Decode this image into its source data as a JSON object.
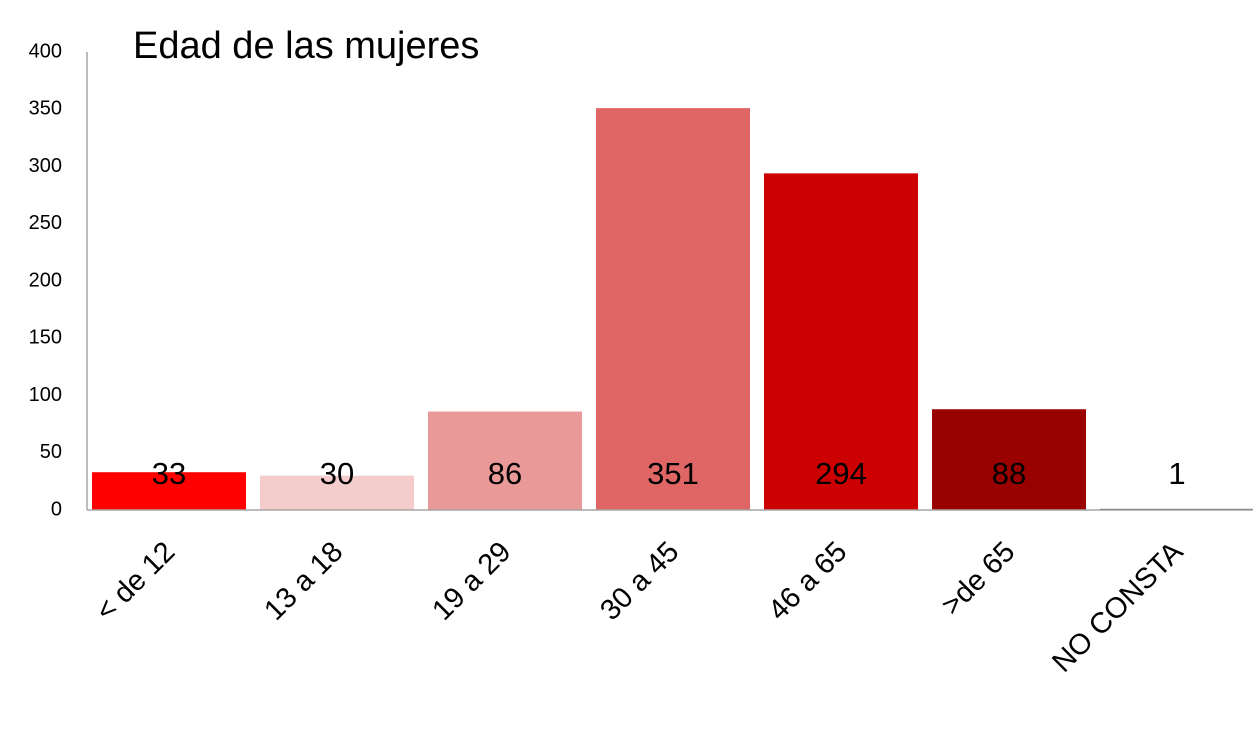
{
  "chart_data": {
    "type": "bar",
    "title": "Edad de las mujeres",
    "categories": [
      "< de 12",
      "13 a 18",
      "19 a 29",
      "30 a 45",
      "46 a 65",
      ">de 65",
      "NO CONSTA"
    ],
    "values": [
      33,
      30,
      86,
      351,
      294,
      88,
      1
    ],
    "colors": [
      "#ff0000",
      "#f4cccc",
      "#ea9999",
      "#e06666",
      "#cc0000",
      "#990000",
      "#404040"
    ],
    "ylim": [
      0,
      400
    ],
    "yticks": [
      0,
      50,
      100,
      150,
      200,
      250,
      300,
      350,
      400
    ],
    "grid": false
  }
}
